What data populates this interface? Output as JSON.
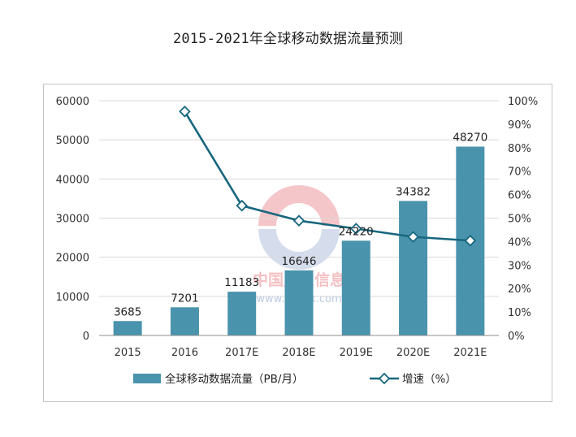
{
  "colors": {
    "bar": "#4a93ad",
    "line": "#17677e",
    "grid": "#d9d9d9",
    "axis": "#8c8c8c",
    "watermark_red": "#d8323c",
    "watermark_blue": "#3f66a8"
  },
  "watermark": {
    "name": "中国产业信息",
    "url": "www.chyxx.com"
  },
  "chart_data": {
    "type": "bar",
    "title": "2015-2021年全球移动数据流量预测",
    "categories": [
      "2015",
      "2016",
      "2017E",
      "2018E",
      "2019E",
      "2020E",
      "2021E"
    ],
    "series": [
      {
        "name": "全球移动数据流量（PB/月）",
        "type": "bar",
        "axis": "left",
        "values": [
          3685,
          7201,
          11183,
          16646,
          24220,
          34382,
          48270
        ],
        "labels": [
          "3685",
          "7201",
          "11183",
          "16646",
          "24220",
          "34382",
          "48270"
        ]
      },
      {
        "name": "增速（%）",
        "type": "line",
        "axis": "right",
        "values": [
          null,
          95.4,
          55.3,
          48.9,
          45.5,
          42.0,
          40.4
        ]
      }
    ],
    "y_left": {
      "ylim": [
        0,
        60000
      ],
      "ticks": [
        "0",
        "10000",
        "20000",
        "30000",
        "40000",
        "50000",
        "60000"
      ]
    },
    "y_right": {
      "ylim": [
        0,
        100
      ],
      "ticks": [
        "0%",
        "10%",
        "20%",
        "30%",
        "40%",
        "50%",
        "60%",
        "70%",
        "80%",
        "90%",
        "100%"
      ]
    },
    "grid": true,
    "legend_position": "bottom"
  }
}
